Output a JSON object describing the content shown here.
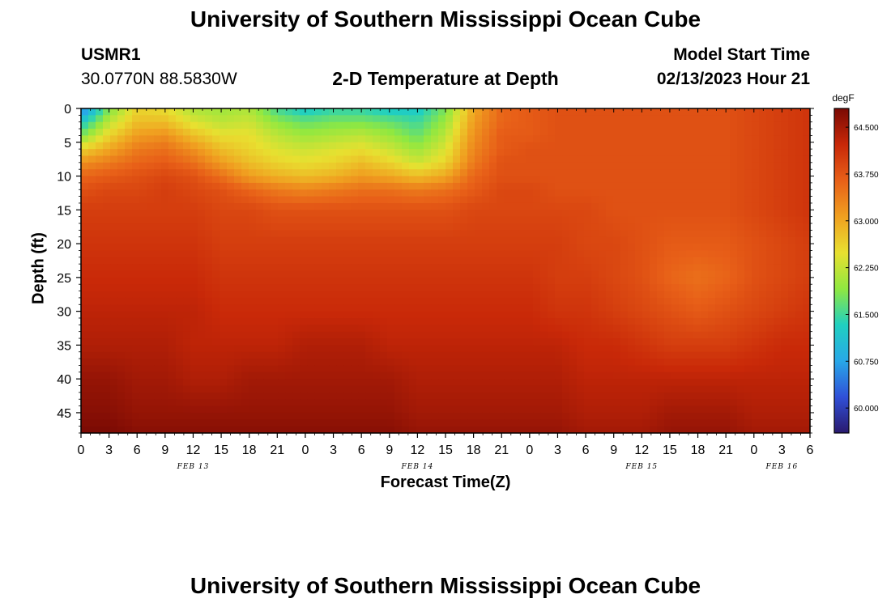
{
  "header": {
    "title": "University of Southern Mississippi Ocean Cube",
    "station_id": "USMR1",
    "station_coords": "30.0770N  88.5830W",
    "plot_title": "2-D Temperature at Depth",
    "model_start_label": "Model Start Time",
    "model_start_value": "02/13/2023 Hour 21"
  },
  "footer": {
    "title": "University of Southern Mississippi Ocean Cube"
  },
  "colorbar": {
    "unit": "degF",
    "ticks": [
      "60.000",
      "60.750",
      "61.500",
      "62.250",
      "63.000",
      "63.750",
      "64.500"
    ]
  },
  "chart_data": {
    "type": "heatmap",
    "title": "2-D Temperature at Depth",
    "xlabel": "Forecast Time(Z)",
    "ylabel": "Depth (ft)",
    "x_tick_labels": [
      "0",
      "3",
      "6",
      "9",
      "12",
      "15",
      "18",
      "21",
      "0",
      "3",
      "6",
      "9",
      "12",
      "15",
      "18",
      "21",
      "0",
      "3",
      "6",
      "9",
      "12",
      "15",
      "18",
      "21",
      "0",
      "3",
      "6"
    ],
    "x_date_labels": [
      {
        "label": "FEB 13",
        "hour_offset": 12
      },
      {
        "label": "FEB 14",
        "hour_offset": 36
      },
      {
        "label": "FEB 15",
        "hour_offset": 60
      },
      {
        "label": "FEB 16",
        "hour_offset": 75
      }
    ],
    "xlim_hours": [
      0,
      78
    ],
    "y_ticks": [
      0,
      5,
      10,
      15,
      20,
      25,
      30,
      35,
      40,
      45
    ],
    "ylim": [
      0,
      48
    ],
    "y_inverted": true,
    "color_range": [
      59.6,
      64.8
    ],
    "colormap": [
      "#2a1a6e",
      "#3050d8",
      "#28a8e8",
      "#20d0c0",
      "#90e840",
      "#e8e030",
      "#f0a020",
      "#e86018",
      "#c82808",
      "#7a0a04"
    ],
    "x_hours": [
      0,
      3,
      6,
      9,
      12,
      15,
      18,
      21,
      24,
      27,
      30,
      33,
      36,
      39,
      42,
      45,
      48,
      51,
      54,
      57,
      60,
      63,
      66,
      69,
      72,
      75,
      78
    ],
    "depths_ft": [
      0,
      2,
      4,
      6,
      8,
      10,
      12,
      15,
      20,
      25,
      30,
      35,
      40,
      45,
      48
    ],
    "temperature_degF": [
      [
        60.4,
        61.8,
        62.6,
        62.5,
        62.1,
        62.0,
        62.1,
        61.5,
        61.2,
        61.4,
        61.4,
        61.2,
        61.2,
        61.8,
        63.0,
        63.6,
        63.7,
        63.8,
        63.8,
        63.8,
        63.8,
        63.8,
        63.8,
        63.8,
        63.9,
        64.0,
        64.1
      ],
      [
        61.2,
        62.2,
        62.8,
        62.8,
        62.4,
        62.2,
        62.3,
        61.9,
        61.7,
        61.8,
        61.8,
        61.7,
        61.5,
        62.0,
        63.1,
        63.6,
        63.7,
        63.8,
        63.8,
        63.8,
        63.8,
        63.8,
        63.8,
        63.8,
        63.9,
        64.0,
        64.1
      ],
      [
        61.8,
        62.6,
        63.1,
        63.2,
        62.8,
        62.5,
        62.5,
        62.2,
        62.0,
        62.1,
        62.2,
        62.0,
        61.7,
        62.2,
        63.2,
        63.7,
        63.7,
        63.8,
        63.8,
        63.8,
        63.8,
        63.8,
        63.8,
        63.8,
        63.9,
        64.0,
        64.1
      ],
      [
        62.6,
        63.0,
        63.4,
        63.5,
        63.2,
        62.8,
        62.6,
        62.4,
        62.3,
        62.4,
        62.5,
        62.3,
        62.0,
        62.4,
        63.3,
        63.7,
        63.8,
        63.8,
        63.8,
        63.8,
        63.8,
        63.8,
        63.8,
        63.8,
        63.9,
        64.0,
        64.1
      ],
      [
        63.2,
        63.4,
        63.6,
        63.7,
        63.5,
        63.1,
        62.8,
        62.6,
        62.5,
        62.6,
        62.8,
        62.6,
        62.3,
        62.6,
        63.4,
        63.8,
        63.8,
        63.8,
        63.8,
        63.8,
        63.8,
        63.8,
        63.8,
        63.8,
        63.9,
        64.0,
        64.1
      ],
      [
        63.6,
        63.7,
        63.8,
        63.9,
        63.8,
        63.5,
        63.1,
        62.9,
        62.8,
        62.9,
        63.1,
        63.0,
        62.8,
        63.0,
        63.6,
        63.8,
        63.8,
        63.8,
        63.8,
        63.8,
        63.8,
        63.8,
        63.8,
        63.8,
        63.9,
        64.0,
        64.1
      ],
      [
        63.8,
        63.9,
        63.9,
        64.0,
        63.9,
        63.8,
        63.6,
        63.4,
        63.3,
        63.4,
        63.5,
        63.5,
        63.4,
        63.5,
        63.7,
        63.9,
        63.9,
        63.8,
        63.8,
        63.8,
        63.8,
        63.8,
        63.8,
        63.8,
        63.9,
        64.0,
        64.1
      ],
      [
        64.0,
        64.0,
        64.0,
        64.0,
        64.0,
        63.9,
        63.9,
        63.8,
        63.8,
        63.8,
        63.8,
        63.8,
        63.8,
        63.8,
        63.9,
        63.9,
        63.9,
        63.9,
        63.9,
        63.8,
        63.8,
        63.8,
        63.8,
        63.8,
        63.9,
        64.0,
        64.1
      ],
      [
        64.1,
        64.1,
        64.1,
        64.1,
        64.1,
        64.0,
        64.0,
        64.0,
        64.0,
        64.0,
        64.0,
        64.0,
        64.0,
        64.0,
        64.0,
        64.0,
        64.0,
        64.0,
        63.9,
        63.9,
        63.8,
        63.7,
        63.7,
        63.7,
        63.8,
        63.9,
        64.0
      ],
      [
        64.2,
        64.2,
        64.2,
        64.2,
        64.2,
        64.1,
        64.1,
        64.1,
        64.1,
        64.1,
        64.1,
        64.1,
        64.1,
        64.1,
        64.1,
        64.1,
        64.1,
        64.0,
        64.0,
        63.9,
        63.8,
        63.6,
        63.5,
        63.6,
        63.8,
        63.9,
        64.0
      ],
      [
        64.3,
        64.3,
        64.3,
        64.3,
        64.3,
        64.2,
        64.2,
        64.2,
        64.2,
        64.2,
        64.2,
        64.2,
        64.2,
        64.2,
        64.2,
        64.2,
        64.2,
        64.1,
        64.1,
        64.0,
        63.9,
        63.8,
        63.7,
        63.8,
        63.9,
        64.0,
        64.1
      ],
      [
        64.4,
        64.4,
        64.4,
        64.4,
        64.3,
        64.3,
        64.3,
        64.3,
        64.4,
        64.4,
        64.4,
        64.3,
        64.3,
        64.3,
        64.3,
        64.3,
        64.3,
        64.3,
        64.2,
        64.2,
        64.1,
        64.0,
        64.0,
        64.0,
        64.1,
        64.2,
        64.2
      ],
      [
        64.6,
        64.6,
        64.5,
        64.5,
        64.4,
        64.4,
        64.5,
        64.5,
        64.5,
        64.5,
        64.5,
        64.5,
        64.4,
        64.4,
        64.4,
        64.4,
        64.4,
        64.4,
        64.3,
        64.3,
        64.3,
        64.3,
        64.3,
        64.3,
        64.3,
        64.3,
        64.3
      ],
      [
        64.7,
        64.7,
        64.6,
        64.6,
        64.6,
        64.6,
        64.6,
        64.6,
        64.6,
        64.6,
        64.6,
        64.6,
        64.5,
        64.5,
        64.5,
        64.5,
        64.5,
        64.5,
        64.4,
        64.4,
        64.4,
        64.5,
        64.5,
        64.5,
        64.4,
        64.4,
        64.4
      ],
      [
        64.8,
        64.8,
        64.7,
        64.7,
        64.7,
        64.7,
        64.7,
        64.7,
        64.7,
        64.7,
        64.7,
        64.7,
        64.6,
        64.6,
        64.6,
        64.6,
        64.6,
        64.6,
        64.5,
        64.5,
        64.5,
        64.6,
        64.6,
        64.6,
        64.5,
        64.5,
        64.5
      ]
    ]
  }
}
